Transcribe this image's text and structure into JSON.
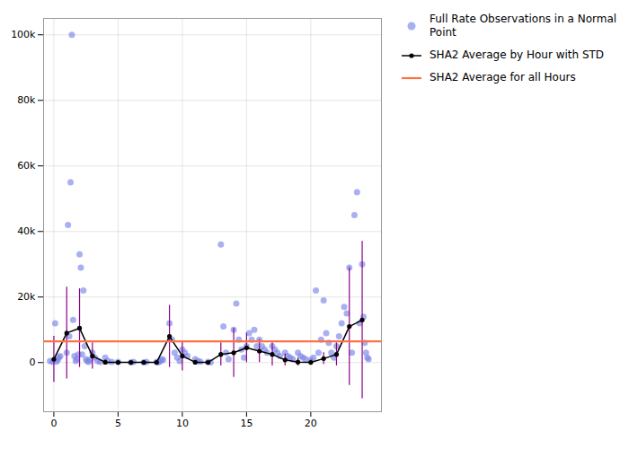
{
  "chart_data": {
    "type": "scatter",
    "grid": true,
    "legend": "right",
    "xlim": [
      -0.8,
      25.5
    ],
    "ylim": [
      -15000,
      105000
    ],
    "xticks": [
      0,
      5,
      10,
      15,
      20
    ],
    "yticks": [
      0,
      {
        "value": 20000,
        "label": "20k"
      },
      {
        "value": 40000,
        "label": "40k"
      },
      {
        "value": 60000,
        "label": "60k"
      },
      {
        "value": 80000,
        "label": "80k"
      },
      {
        "value": 100000,
        "label": "100k"
      }
    ],
    "series": [
      {
        "name": "Full Rate Observations in a Normal Point",
        "type": "scatter",
        "color": "#7b86e8",
        "x": [
          -0.3,
          -0.1,
          0.1,
          0.2,
          0.3,
          0.4,
          0.5,
          1.0,
          1.1,
          1.2,
          1.3,
          1.4,
          1.5,
          1.6,
          1.7,
          1.8,
          1.9,
          2.0,
          2.1,
          2.2,
          2.3,
          2.4,
          2.5,
          2.6,
          2.7,
          2.8,
          3.0,
          3.2,
          3.4,
          3.6,
          4.0,
          4.2,
          4.5,
          5.0,
          6.0,
          6.2,
          7.0,
          7.2,
          8.0,
          8.1,
          8.2,
          8.3,
          8.4,
          8.5,
          9.0,
          9.2,
          9.4,
          9.6,
          9.8,
          10.0,
          10.2,
          10.4,
          11.0,
          11.2,
          11.4,
          12.0,
          12.2,
          13.0,
          13.2,
          13.4,
          13.6,
          14.0,
          14.2,
          14.4,
          14.6,
          14.8,
          15.0,
          15.2,
          15.4,
          15.6,
          15.8,
          16.0,
          16.2,
          16.4,
          16.6,
          17.0,
          17.2,
          17.4,
          17.6,
          18.0,
          18.2,
          18.4,
          18.6,
          19.0,
          19.2,
          19.4,
          19.6,
          20.0,
          20.2,
          20.4,
          20.6,
          20.8,
          21.0,
          21.2,
          21.4,
          21.6,
          21.8,
          22.0,
          22.2,
          22.4,
          22.6,
          22.8,
          23.0,
          23.2,
          23.4,
          23.6,
          23.8,
          24.0,
          24.1,
          24.2,
          24.3,
          24.4,
          24.5
        ],
        "values": [
          500,
          200,
          12000,
          300,
          800,
          1500,
          2000,
          3000,
          42000,
          8000,
          55000,
          100000,
          13000,
          2000,
          500,
          1000,
          2500,
          33000,
          29000,
          2500,
          22000,
          5000,
          1000,
          500,
          200,
          800,
          3000,
          1500,
          500,
          200,
          1500,
          500,
          200,
          200,
          100,
          200,
          100,
          200,
          200,
          100,
          300,
          500,
          1000,
          800,
          12000,
          7000,
          3000,
          1500,
          500,
          4000,
          3000,
          2000,
          1000,
          500,
          300,
          200,
          100,
          36000,
          11000,
          3000,
          1000,
          10000,
          18000,
          7000,
          4000,
          1500,
          5000,
          9000,
          7000,
          10000,
          5000,
          7000,
          5000,
          4000,
          3000,
          5000,
          4000,
          3000,
          2000,
          3000,
          2000,
          1500,
          1000,
          3000,
          2000,
          1500,
          1000,
          800,
          1500,
          22000,
          3000,
          7000,
          19000,
          9000,
          6000,
          3000,
          1500,
          5000,
          8000,
          12000,
          17000,
          15000,
          29000,
          3000,
          45000,
          52000,
          12000,
          30000,
          14000,
          6000,
          3000,
          1500,
          1000
        ]
      },
      {
        "name": "SHA2 Average by Hour with STD",
        "type": "line",
        "color": "#000000",
        "marker": "circle",
        "x": [
          0,
          1,
          2,
          3,
          4,
          5,
          6,
          7,
          8,
          9,
          10,
          11,
          12,
          13,
          14,
          15,
          16,
          17,
          18,
          19,
          20,
          21,
          22,
          23,
          24
        ],
        "values": [
          1000,
          9000,
          10500,
          2000,
          100,
          50,
          50,
          50,
          50,
          8000,
          2000,
          100,
          50,
          2500,
          3000,
          4500,
          3500,
          2500,
          800,
          150,
          50,
          1200,
          2500,
          11000,
          13000
        ],
        "error": {
          "color": "#8b008b",
          "values": [
            7000,
            14000,
            12000,
            4000,
            800,
            400,
            400,
            200,
            200,
            9500,
            4500,
            400,
            400,
            3500,
            7500,
            4500,
            3500,
            3500,
            1800,
            1200,
            800,
            1800,
            3500,
            18000,
            24000
          ]
        }
      },
      {
        "name": "SHA2 Average for all Hours",
        "type": "hline",
        "color": "#ff7043",
        "value": 6500
      }
    ]
  }
}
